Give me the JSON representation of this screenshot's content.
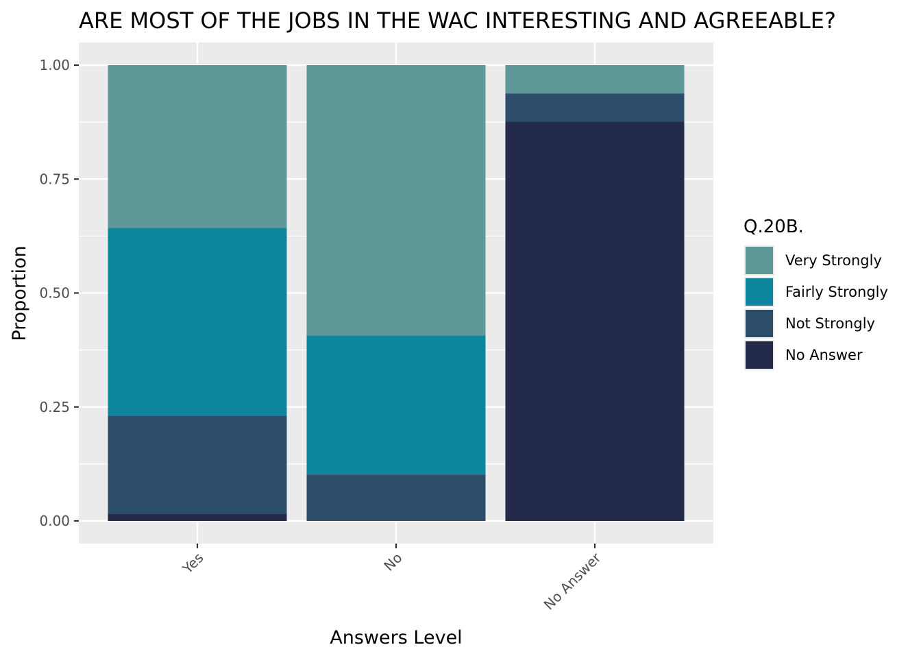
{
  "chart_data": {
    "type": "bar",
    "stacked": true,
    "title": "ARE MOST OF THE JOBS IN THE WAC INTERESTING AND AGREEABLE?",
    "xlabel": "Answers Level",
    "ylabel": "Proportion",
    "ylim": [
      0,
      1
    ],
    "yticks": [
      "0.00",
      "0.25",
      "0.50",
      "0.75",
      "1.00"
    ],
    "ytick_values": [
      0,
      0.25,
      0.5,
      0.75,
      1
    ],
    "grid": true,
    "categories": [
      "Yes",
      "No",
      "No Answer"
    ],
    "legend": {
      "title": "Q.20B.",
      "placement": "right"
    },
    "series": [
      {
        "name": "No Answer",
        "color": "#232a4a",
        "values": [
          0.016,
          0.0,
          0.876
        ]
      },
      {
        "name": "Not Strongly",
        "color": "#2c4e6b",
        "values": [
          0.215,
          0.102,
          0.062
        ]
      },
      {
        "name": "Fairly Strongly",
        "color": "#0e879e",
        "values": [
          0.412,
          0.305,
          0.0
        ]
      },
      {
        "name": "Very Strongly",
        "color": "#5e9898",
        "values": [
          0.357,
          0.593,
          0.062
        ]
      }
    ],
    "legend_order": [
      "Very Strongly",
      "Fairly Strongly",
      "Not Strongly",
      "No Answer"
    ]
  }
}
